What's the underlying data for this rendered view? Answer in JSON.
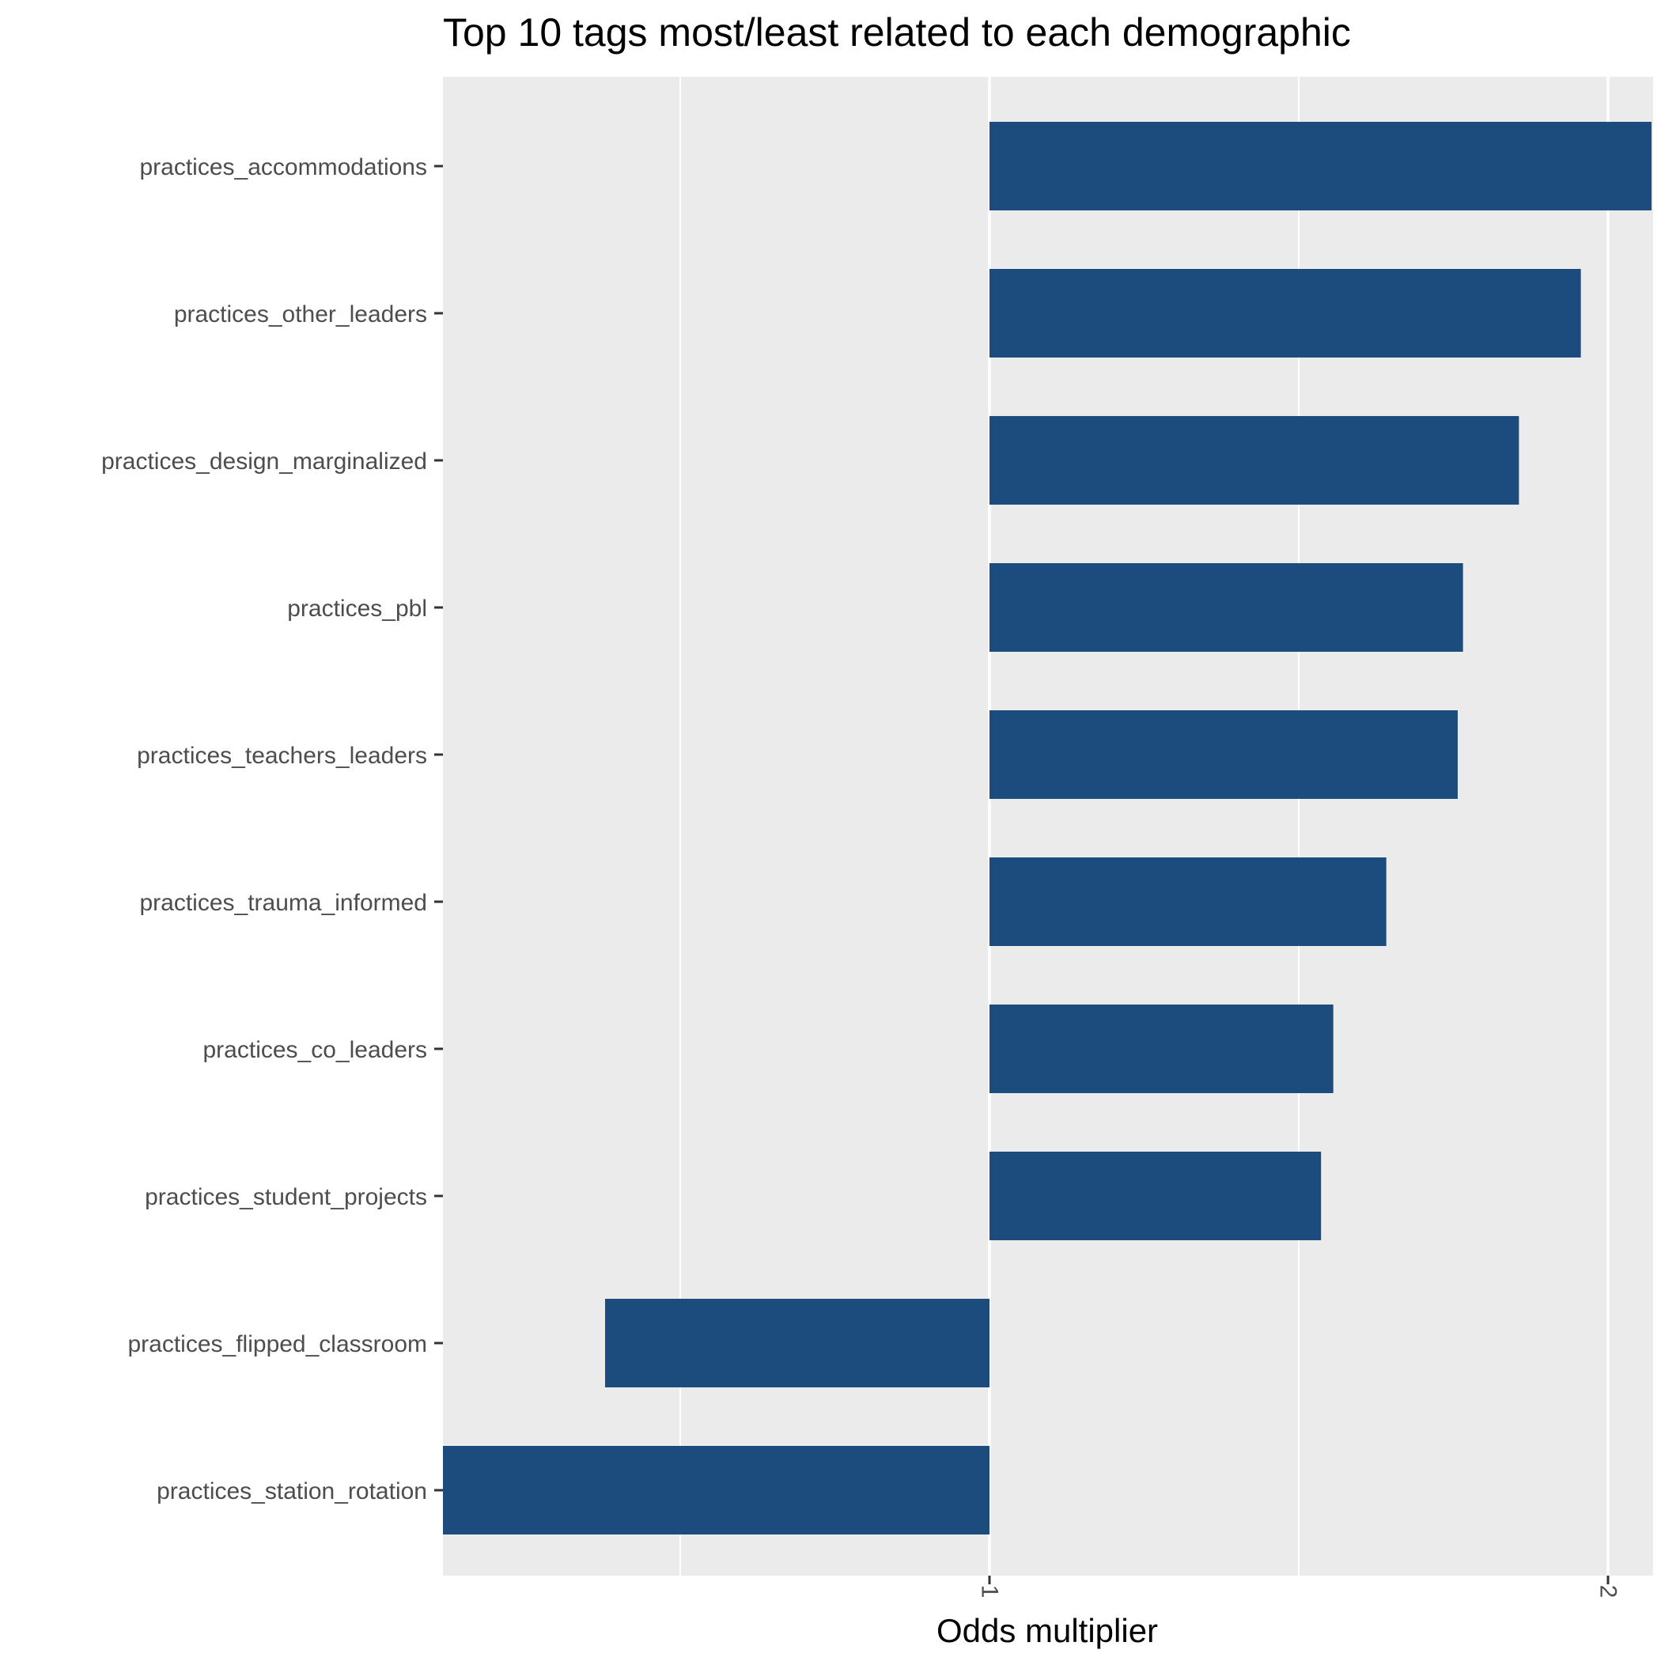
{
  "chart_data": {
    "type": "bar",
    "orientation": "horizontal",
    "title": "Top 10 tags most/least related to each demographic",
    "xlabel": "Odds multiplier",
    "ylabel": "",
    "bar_color": "#1c4b7e",
    "panel_color": "#ebebeb",
    "grid": true,
    "x_scale": "log",
    "xlim": [
      0.54,
      2.08
    ],
    "x_ticks": [
      {
        "value": 1,
        "label": "1"
      },
      {
        "value": 2,
        "label": "2"
      }
    ],
    "categories": [
      "practices_accommodations",
      "practices_other_leaders",
      "practices_design_marginalized",
      "practices_pbl",
      "practices_teachers_leaders",
      "practices_trauma_informed",
      "practices_co_leaders",
      "practices_student_projects",
      "practices_flipped_classroom",
      "practices_station_rotation"
    ],
    "values": [
      2.1,
      1.94,
      1.81,
      1.7,
      1.69,
      1.56,
      1.47,
      1.45,
      0.65,
      0.54
    ]
  }
}
